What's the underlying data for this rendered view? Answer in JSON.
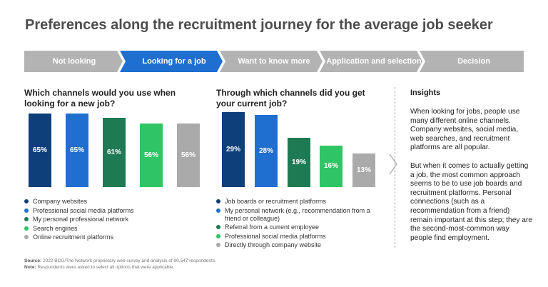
{
  "title": "Preferences along the recruitment journey for the average job seeker",
  "steps": [
    {
      "label": "Not looking",
      "color": "#b3b3b3"
    },
    {
      "label": "Looking for a job",
      "color": "#1f6fd1"
    },
    {
      "label": "Want to know more",
      "color": "#b3b3b3"
    },
    {
      "label": "Application and selection",
      "color": "#b3b3b3"
    },
    {
      "label": "Decision",
      "color": "#b3b3b3"
    }
  ],
  "chart_data": [
    {
      "type": "bar",
      "title": "Which channels would you use when looking for a new job?",
      "categories": [
        "Company websites",
        "Professional social media platforms",
        "My personal professional network",
        "Search engines",
        "Online recruitment platforms"
      ],
      "values": [
        65,
        65,
        61,
        56,
        56
      ],
      "value_labels": [
        "65%",
        "65%",
        "61%",
        "56%",
        "56%"
      ],
      "colors": [
        "#0f3f7a",
        "#1f6fd1",
        "#1e7a52",
        "#2fc464",
        "#aaaaaa"
      ],
      "ylim": [
        0,
        65
      ],
      "legend": "bottom"
    },
    {
      "type": "bar",
      "title": "Through which channels did you get your current job?",
      "categories": [
        "Job boards or recruitment platforms",
        "My personal network (e.g., recommendation from a friend or colleague)",
        "Referral from a current employee",
        "Professional social media platforms",
        "Directly through company website"
      ],
      "values": [
        29,
        28,
        19,
        16,
        13
      ],
      "value_labels": [
        "29%",
        "28%",
        "19%",
        "16%",
        "13%"
      ],
      "colors": [
        "#0f3f7a",
        "#1f6fd1",
        "#1e7a52",
        "#2fc464",
        "#aaaaaa"
      ],
      "ylim": [
        0,
        29
      ],
      "legend": "bottom"
    }
  ],
  "insights": {
    "title": "Insights",
    "p1": "When looking for jobs, people use many different online channels. Company websites, social media, web searches, and recruitment platforms are all popular.",
    "p2": "But when it comes to actually getting a job, the most common approach seems to be to use job boards and recruitment platforms. Personal connections (such as a recommendation from a friend) remain important at this step; they are the second-most-common way people find employment."
  },
  "footer": {
    "source_label": "Source:",
    "source_text": " 2022 BCG/The Network proprietary web survey and analysis of 90,547 respondents.",
    "note_label": "Note:",
    "note_text": " Respondents were asked to select all options that were applicable."
  }
}
